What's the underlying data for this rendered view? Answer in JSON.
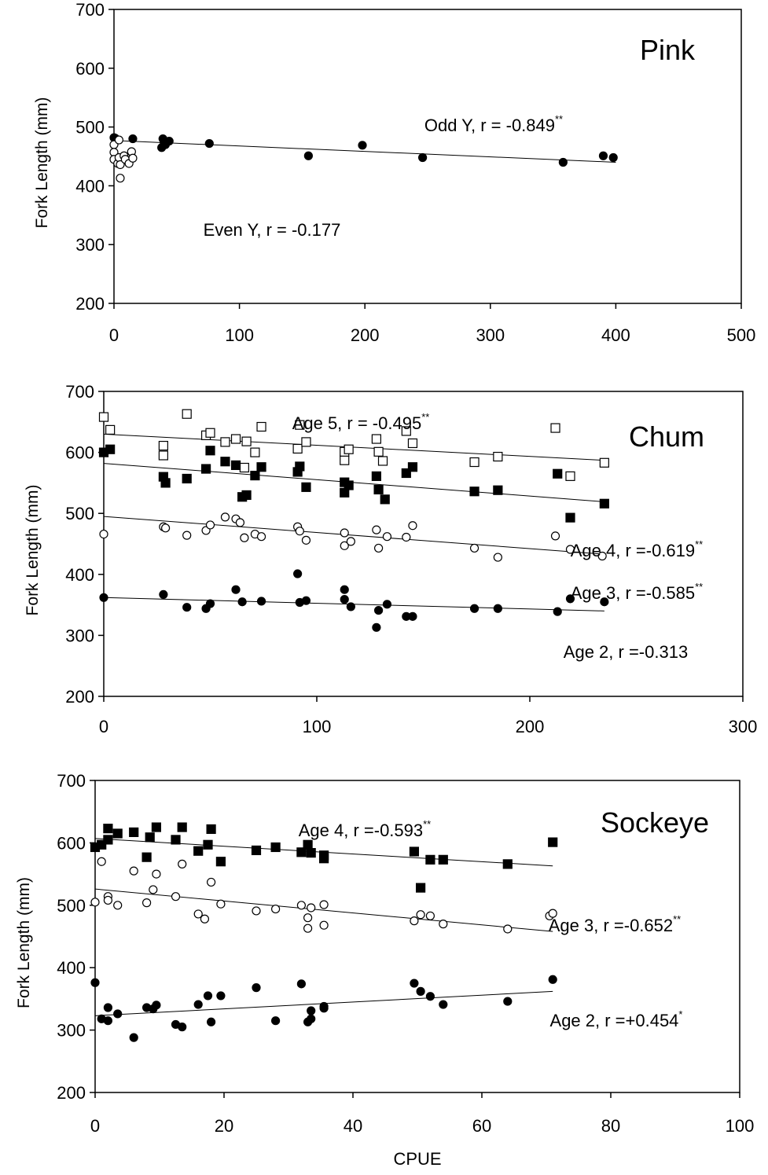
{
  "chart_data": [
    {
      "type": "scatter",
      "title": "Pink",
      "xlabel": "",
      "ylabel": "Fork Length (mm)",
      "xlim": [
        0,
        500
      ],
      "ylim": [
        200,
        700
      ],
      "xticks": [
        0,
        100,
        200,
        300,
        400,
        500
      ],
      "yticks": [
        200,
        300,
        400,
        500,
        600,
        700
      ],
      "grid": false,
      "series": [
        {
          "marker": "filled-circle",
          "fit": {
            "x": [
              0,
              400
            ],
            "y": [
              477,
              440
            ]
          },
          "annotation": {
            "text": "Odd Y,  r = -0.849",
            "sup": "**"
          },
          "points": [
            [
              0,
              482
            ],
            [
              1,
              481
            ],
            [
              15,
              480
            ],
            [
              39,
              480
            ],
            [
              40,
              474
            ],
            [
              38,
              465
            ],
            [
              41,
              470
            ],
            [
              44,
              476
            ],
            [
              76,
              472
            ],
            [
              155,
              451
            ],
            [
              198,
              469
            ],
            [
              246,
              448
            ],
            [
              358,
              440
            ],
            [
              390,
              451
            ],
            [
              398,
              448
            ]
          ]
        },
        {
          "marker": "open-circle",
          "fit": null,
          "annotation": {
            "text": "Even Y,  r = -0.177",
            "sup": ""
          },
          "points": [
            [
              0,
              470
            ],
            [
              0,
              457
            ],
            [
              0,
              445
            ],
            [
              3,
              438
            ],
            [
              4,
              448
            ],
            [
              5,
              436
            ],
            [
              4,
              478
            ],
            [
              5,
              413
            ],
            [
              8,
              451
            ],
            [
              9,
              445
            ],
            [
              12,
              438
            ],
            [
              14,
              458
            ],
            [
              15,
              447
            ]
          ]
        }
      ]
    },
    {
      "type": "scatter",
      "title": "Chum",
      "xlabel": "",
      "ylabel": "Fork Length (mm)",
      "xlim": [
        0,
        300
      ],
      "ylim": [
        200,
        700
      ],
      "xticks": [
        0,
        100,
        200,
        300
      ],
      "yticks": [
        200,
        300,
        400,
        500,
        600,
        700
      ],
      "grid": false,
      "series": [
        {
          "marker": "open-square",
          "fit": {
            "x": [
              0,
              235
            ],
            "y": [
              630,
              587
            ]
          },
          "annotation": {
            "text": "Age 5,  r = -0.495",
            "sup": "**"
          },
          "points": [
            [
              0,
              658
            ],
            [
              3,
              637
            ],
            [
              28,
              611
            ],
            [
              28,
              595
            ],
            [
              39,
              663
            ],
            [
              48,
              628
            ],
            [
              50,
              632
            ],
            [
              57,
              617
            ],
            [
              62,
              622
            ],
            [
              66,
              575
            ],
            [
              67,
              618
            ],
            [
              71,
              600
            ],
            [
              74,
              642
            ],
            [
              91,
              606
            ],
            [
              92,
              645
            ],
            [
              95,
              617
            ],
            [
              113,
              587
            ],
            [
              113,
              601
            ],
            [
              115,
              605
            ],
            [
              128,
              622
            ],
            [
              129,
              601
            ],
            [
              131,
              586
            ],
            [
              142,
              635
            ],
            [
              145,
              615
            ],
            [
              174,
              584
            ],
            [
              185,
              593
            ],
            [
              212,
              640
            ],
            [
              219,
              561
            ],
            [
              235,
              583
            ]
          ]
        },
        {
          "marker": "filled-square",
          "fit": {
            "x": [
              0,
              235
            ],
            "y": [
              582,
              519
            ]
          },
          "annotation": {
            "text": "",
            "sup": ""
          },
          "points": [
            [
              0,
              600
            ],
            [
              3,
              605
            ],
            [
              28,
              560
            ],
            [
              29,
              550
            ],
            [
              39,
              557
            ],
            [
              48,
              573
            ],
            [
              50,
              603
            ],
            [
              57,
              585
            ],
            [
              62,
              579
            ],
            [
              65,
              527
            ],
            [
              67,
              530
            ],
            [
              71,
              562
            ],
            [
              74,
              576
            ],
            [
              91,
              568
            ],
            [
              92,
              577
            ],
            [
              95,
              543
            ],
            [
              113,
              534
            ],
            [
              113,
              551
            ],
            [
              115,
              546
            ],
            [
              128,
              561
            ],
            [
              129,
              539
            ],
            [
              132,
              523
            ],
            [
              142,
              566
            ],
            [
              145,
              576
            ],
            [
              174,
              536
            ],
            [
              185,
              538
            ],
            [
              213,
              565
            ],
            [
              219,
              493
            ],
            [
              235,
              516
            ]
          ]
        },
        {
          "marker": "open-circle",
          "fit": {
            "x": [
              0,
              235
            ],
            "y": [
              495,
              433
            ]
          },
          "annotation": {
            "text": "Age 4,  r =-0.619",
            "sup": "**"
          },
          "points": [
            [
              0,
              466
            ],
            [
              28,
              478
            ],
            [
              29,
              476
            ],
            [
              39,
              464
            ],
            [
              48,
              472
            ],
            [
              50,
              481
            ],
            [
              57,
              494
            ],
            [
              62,
              491
            ],
            [
              64,
              485
            ],
            [
              66,
              460
            ],
            [
              71,
              466
            ],
            [
              74,
              462
            ],
            [
              91,
              478
            ],
            [
              92,
              471
            ],
            [
              95,
              456
            ],
            [
              113,
              468
            ],
            [
              113,
              447
            ],
            [
              116,
              454
            ],
            [
              128,
              473
            ],
            [
              129,
              443
            ],
            [
              133,
              462
            ],
            [
              142,
              461
            ],
            [
              145,
              480
            ],
            [
              174,
              443
            ],
            [
              185,
              428
            ],
            [
              212,
              463
            ],
            [
              219,
              441
            ],
            [
              234,
              430
            ]
          ]
        },
        {
          "marker": "filled-circle",
          "fit": {
            "x": [
              0,
              235
            ],
            "y": [
              362,
              340
            ]
          },
          "annotation": {
            "text": "Age 3,  r =-0.585",
            "sup": "**"
          },
          "points": [
            [
              0,
              362
            ],
            [
              28,
              367
            ],
            [
              39,
              346
            ],
            [
              48,
              344
            ],
            [
              50,
              352
            ],
            [
              62,
              375
            ],
            [
              65,
              355
            ],
            [
              74,
              356
            ],
            [
              91,
              401
            ],
            [
              92,
              354
            ],
            [
              95,
              357
            ],
            [
              113,
              375
            ],
            [
              113,
              359
            ],
            [
              116,
              347
            ],
            [
              128,
              313
            ],
            [
              129,
              341
            ],
            [
              133,
              351
            ],
            [
              142,
              331
            ],
            [
              145,
              331
            ],
            [
              174,
              344
            ],
            [
              185,
              344
            ],
            [
              213,
              339
            ],
            [
              219,
              360
            ],
            [
              235,
              355
            ]
          ]
        },
        {
          "marker": "none",
          "fit": null,
          "annotation": {
            "text": "Age 2,  r =-0.313",
            "sup": ""
          },
          "points": []
        }
      ]
    },
    {
      "type": "scatter",
      "title": "Sockeye",
      "xlabel": "CPUE",
      "ylabel": "Fork Length (mm)",
      "xlim": [
        0,
        100
      ],
      "ylim": [
        200,
        700
      ],
      "xticks": [
        0,
        20,
        40,
        60,
        80,
        100
      ],
      "yticks": [
        200,
        300,
        400,
        500,
        600,
        700
      ],
      "grid": false,
      "series": [
        {
          "marker": "filled-square",
          "fit": {
            "x": [
              0,
              71
            ],
            "y": [
              607,
              563
            ]
          },
          "annotation": {
            "text": "Age 4,  r =-0.593",
            "sup": "**"
          },
          "points": [
            [
              0,
              593
            ],
            [
              1,
              597
            ],
            [
              2,
              605
            ],
            [
              2,
              623
            ],
            [
              3.5,
              615
            ],
            [
              6,
              617
            ],
            [
              8,
              577
            ],
            [
              8.5,
              609
            ],
            [
              9.5,
              625
            ],
            [
              12.5,
              605
            ],
            [
              13.5,
              625
            ],
            [
              16,
              587
            ],
            [
              17.5,
              597
            ],
            [
              18,
              622
            ],
            [
              19.5,
              570
            ],
            [
              25,
              588
            ],
            [
              28,
              593
            ],
            [
              32,
              585
            ],
            [
              33,
              597
            ],
            [
              33.5,
              584
            ],
            [
              35.5,
              575
            ],
            [
              35.5,
              580
            ],
            [
              49.5,
              586
            ],
            [
              50.5,
              528
            ],
            [
              52,
              573
            ],
            [
              54,
              573
            ],
            [
              64,
              566
            ],
            [
              71,
              601
            ]
          ]
        },
        {
          "marker": "open-circle",
          "fit": {
            "x": [
              0,
              71
            ],
            "y": [
              526,
              458
            ]
          },
          "annotation": {
            "text": "Age 3,  r =-0.652",
            "sup": "**"
          },
          "points": [
            [
              0,
              505
            ],
            [
              1,
              570
            ],
            [
              2,
              514
            ],
            [
              2,
              508
            ],
            [
              3.5,
              500
            ],
            [
              6,
              555
            ],
            [
              8,
              504
            ],
            [
              9,
              525
            ],
            [
              9.5,
              550
            ],
            [
              12.5,
              514
            ],
            [
              13.5,
              566
            ],
            [
              16,
              486
            ],
            [
              17,
              478
            ],
            [
              18,
              537
            ],
            [
              19.5,
              502
            ],
            [
              25,
              491
            ],
            [
              28,
              494
            ],
            [
              32,
              500
            ],
            [
              33,
              463
            ],
            [
              33.5,
              496
            ],
            [
              33,
              480
            ],
            [
              35.5,
              501
            ],
            [
              35.5,
              468
            ],
            [
              49.5,
              475
            ],
            [
              50.5,
              485
            ],
            [
              52,
              483
            ],
            [
              54,
              470
            ],
            [
              64,
              462
            ],
            [
              70.5,
              483
            ],
            [
              71,
              487
            ]
          ]
        },
        {
          "marker": "filled-circle",
          "fit": {
            "x": [
              0,
              71
            ],
            "y": [
              323,
              362
            ]
          },
          "annotation": {
            "text": "Age 2,  r =+0.454",
            "sup": "*"
          },
          "points": [
            [
              0,
              376
            ],
            [
              1,
              318
            ],
            [
              2,
              336
            ],
            [
              2,
              315
            ],
            [
              3.5,
              326
            ],
            [
              6,
              288
            ],
            [
              8,
              336
            ],
            [
              9,
              334
            ],
            [
              9.5,
              340
            ],
            [
              12.5,
              309
            ],
            [
              13.5,
              305
            ],
            [
              16,
              341
            ],
            [
              17.5,
              355
            ],
            [
              18,
              313
            ],
            [
              19.5,
              355
            ],
            [
              25,
              368
            ],
            [
              28,
              315
            ],
            [
              32,
              374
            ],
            [
              33,
              313
            ],
            [
              33.5,
              318
            ],
            [
              33.5,
              331
            ],
            [
              35.5,
              338
            ],
            [
              35.5,
              335
            ],
            [
              49.5,
              375
            ],
            [
              50.5,
              362
            ],
            [
              52,
              354
            ],
            [
              54,
              341
            ],
            [
              64,
              346
            ],
            [
              71,
              381
            ]
          ]
        }
      ]
    }
  ]
}
